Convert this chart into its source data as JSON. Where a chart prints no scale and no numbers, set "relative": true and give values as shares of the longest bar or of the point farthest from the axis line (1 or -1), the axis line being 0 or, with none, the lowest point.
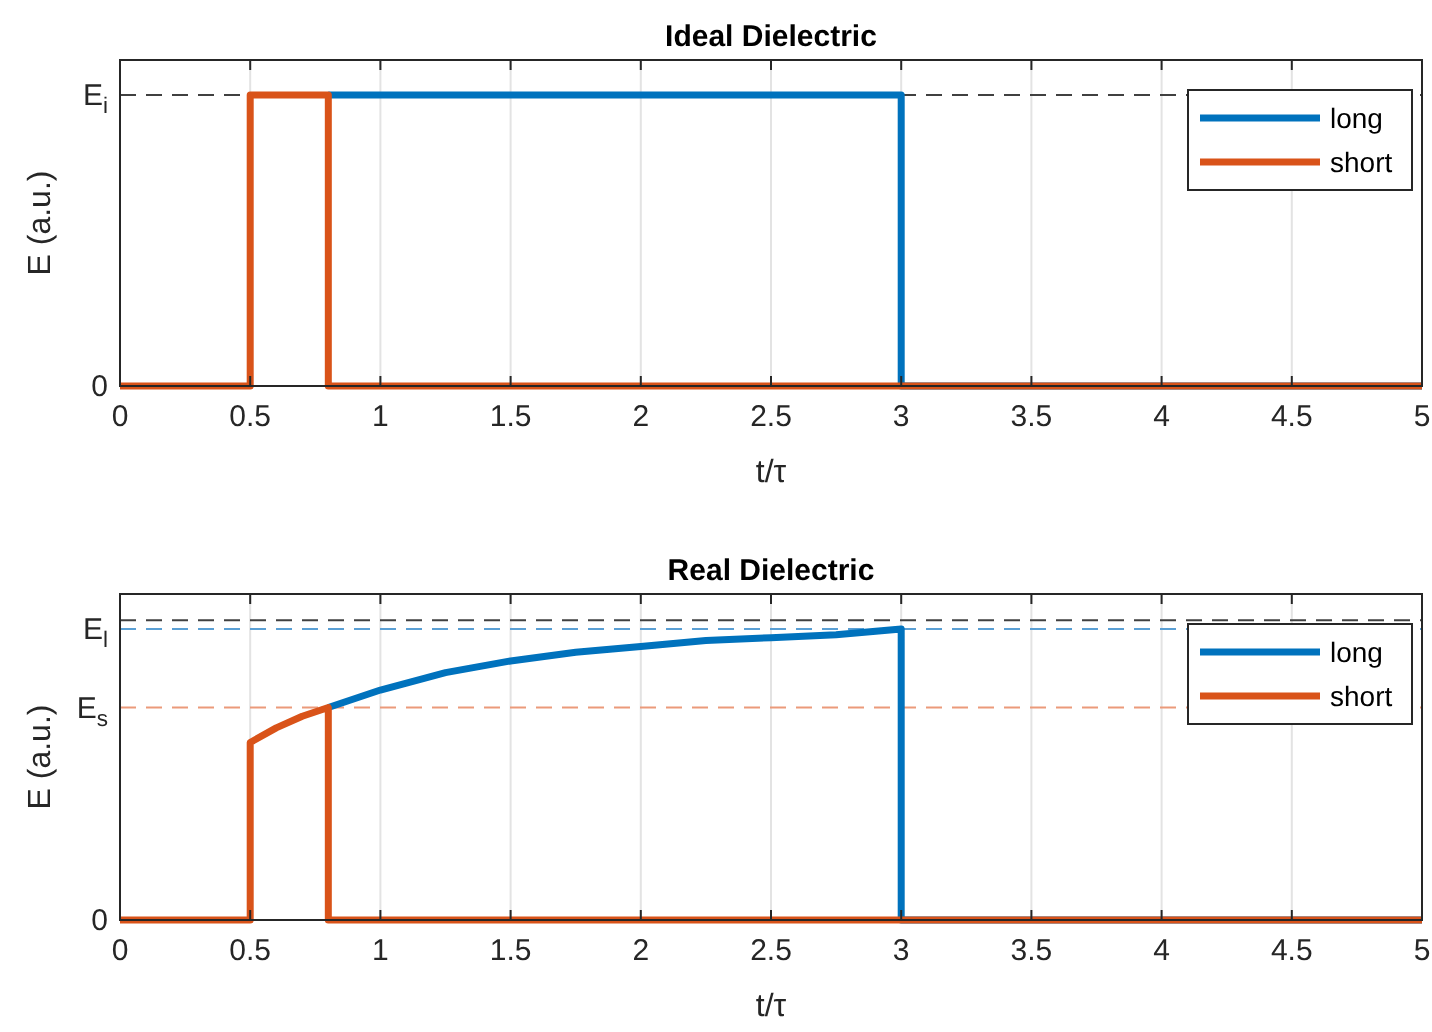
{
  "chart_data": [
    {
      "type": "line",
      "title": "Ideal Dielectric",
      "xlabel": "t/τ",
      "ylabel": "E (a.u.)",
      "xlim": [
        0,
        5
      ],
      "xticks": [
        0,
        0.5,
        1,
        1.5,
        2,
        2.5,
        3,
        3.5,
        4,
        4.5,
        5
      ],
      "relative": true,
      "grid": "x",
      "legend": "top right",
      "line_style": "solid",
      "marker": "none",
      "annotations": [
        "0"
      ],
      "ref_lines": [
        {
          "axis": "y",
          "value": 1,
          "label": "E$_{i}$",
          "color": "#404040",
          "line_style": "dashed"
        }
      ],
      "series": [
        {
          "name": "long",
          "color": "#0072bd",
          "x": [
            0.8,
            3,
            3,
            5
          ],
          "values": [
            1,
            1,
            0,
            0
          ]
        },
        {
          "name": "short",
          "color": "#d95319",
          "x": [
            0,
            0.5,
            0.5,
            0.8,
            0.8,
            5
          ],
          "values": [
            0,
            0,
            1,
            1,
            0,
            0
          ]
        }
      ]
    },
    {
      "type": "line",
      "title": "Real Dielectric",
      "xlabel": "t/τ",
      "ylabel": "E (a.u.)",
      "xlim": [
        0,
        5
      ],
      "xticks": [
        0,
        0.5,
        1,
        1.5,
        2,
        2.5,
        3,
        3.5,
        4,
        4.5,
        5
      ],
      "relative": true,
      "grid": "x",
      "legend": "top right",
      "line_style": "solid",
      "marker": "none",
      "annotations": [
        "0"
      ],
      "ref_lines": [
        {
          "axis": "y",
          "value": 1.03,
          "color": "#404040",
          "line_style": "dashed"
        },
        {
          "axis": "y",
          "value": 1,
          "label": "E$_{l}$",
          "color": "#5a9fd4",
          "line_style": "dashed"
        },
        {
          "axis": "y",
          "value": 0.73,
          "label": "E$_{s}$",
          "color": "#eb9a7a",
          "line_style": "dashed"
        }
      ],
      "series": [
        {
          "name": "long",
          "color": "#0072bd",
          "x": [
            0.8,
            1,
            1.25,
            1.5,
            1.75,
            2,
            2.25,
            2.5,
            2.75,
            3,
            3,
            5
          ],
          "values": [
            0.73,
            0.79,
            0.85,
            0.89,
            0.92,
            0.94,
            0.96,
            0.97,
            0.98,
            1,
            0,
            0
          ]
        },
        {
          "name": "short",
          "color": "#d95319",
          "x": [
            0,
            0.5,
            0.5,
            0.6,
            0.7,
            0.8,
            0.8,
            5
          ],
          "values": [
            0,
            0,
            0.61,
            0.66,
            0.7,
            0.73,
            0,
            0
          ]
        }
      ]
    }
  ]
}
